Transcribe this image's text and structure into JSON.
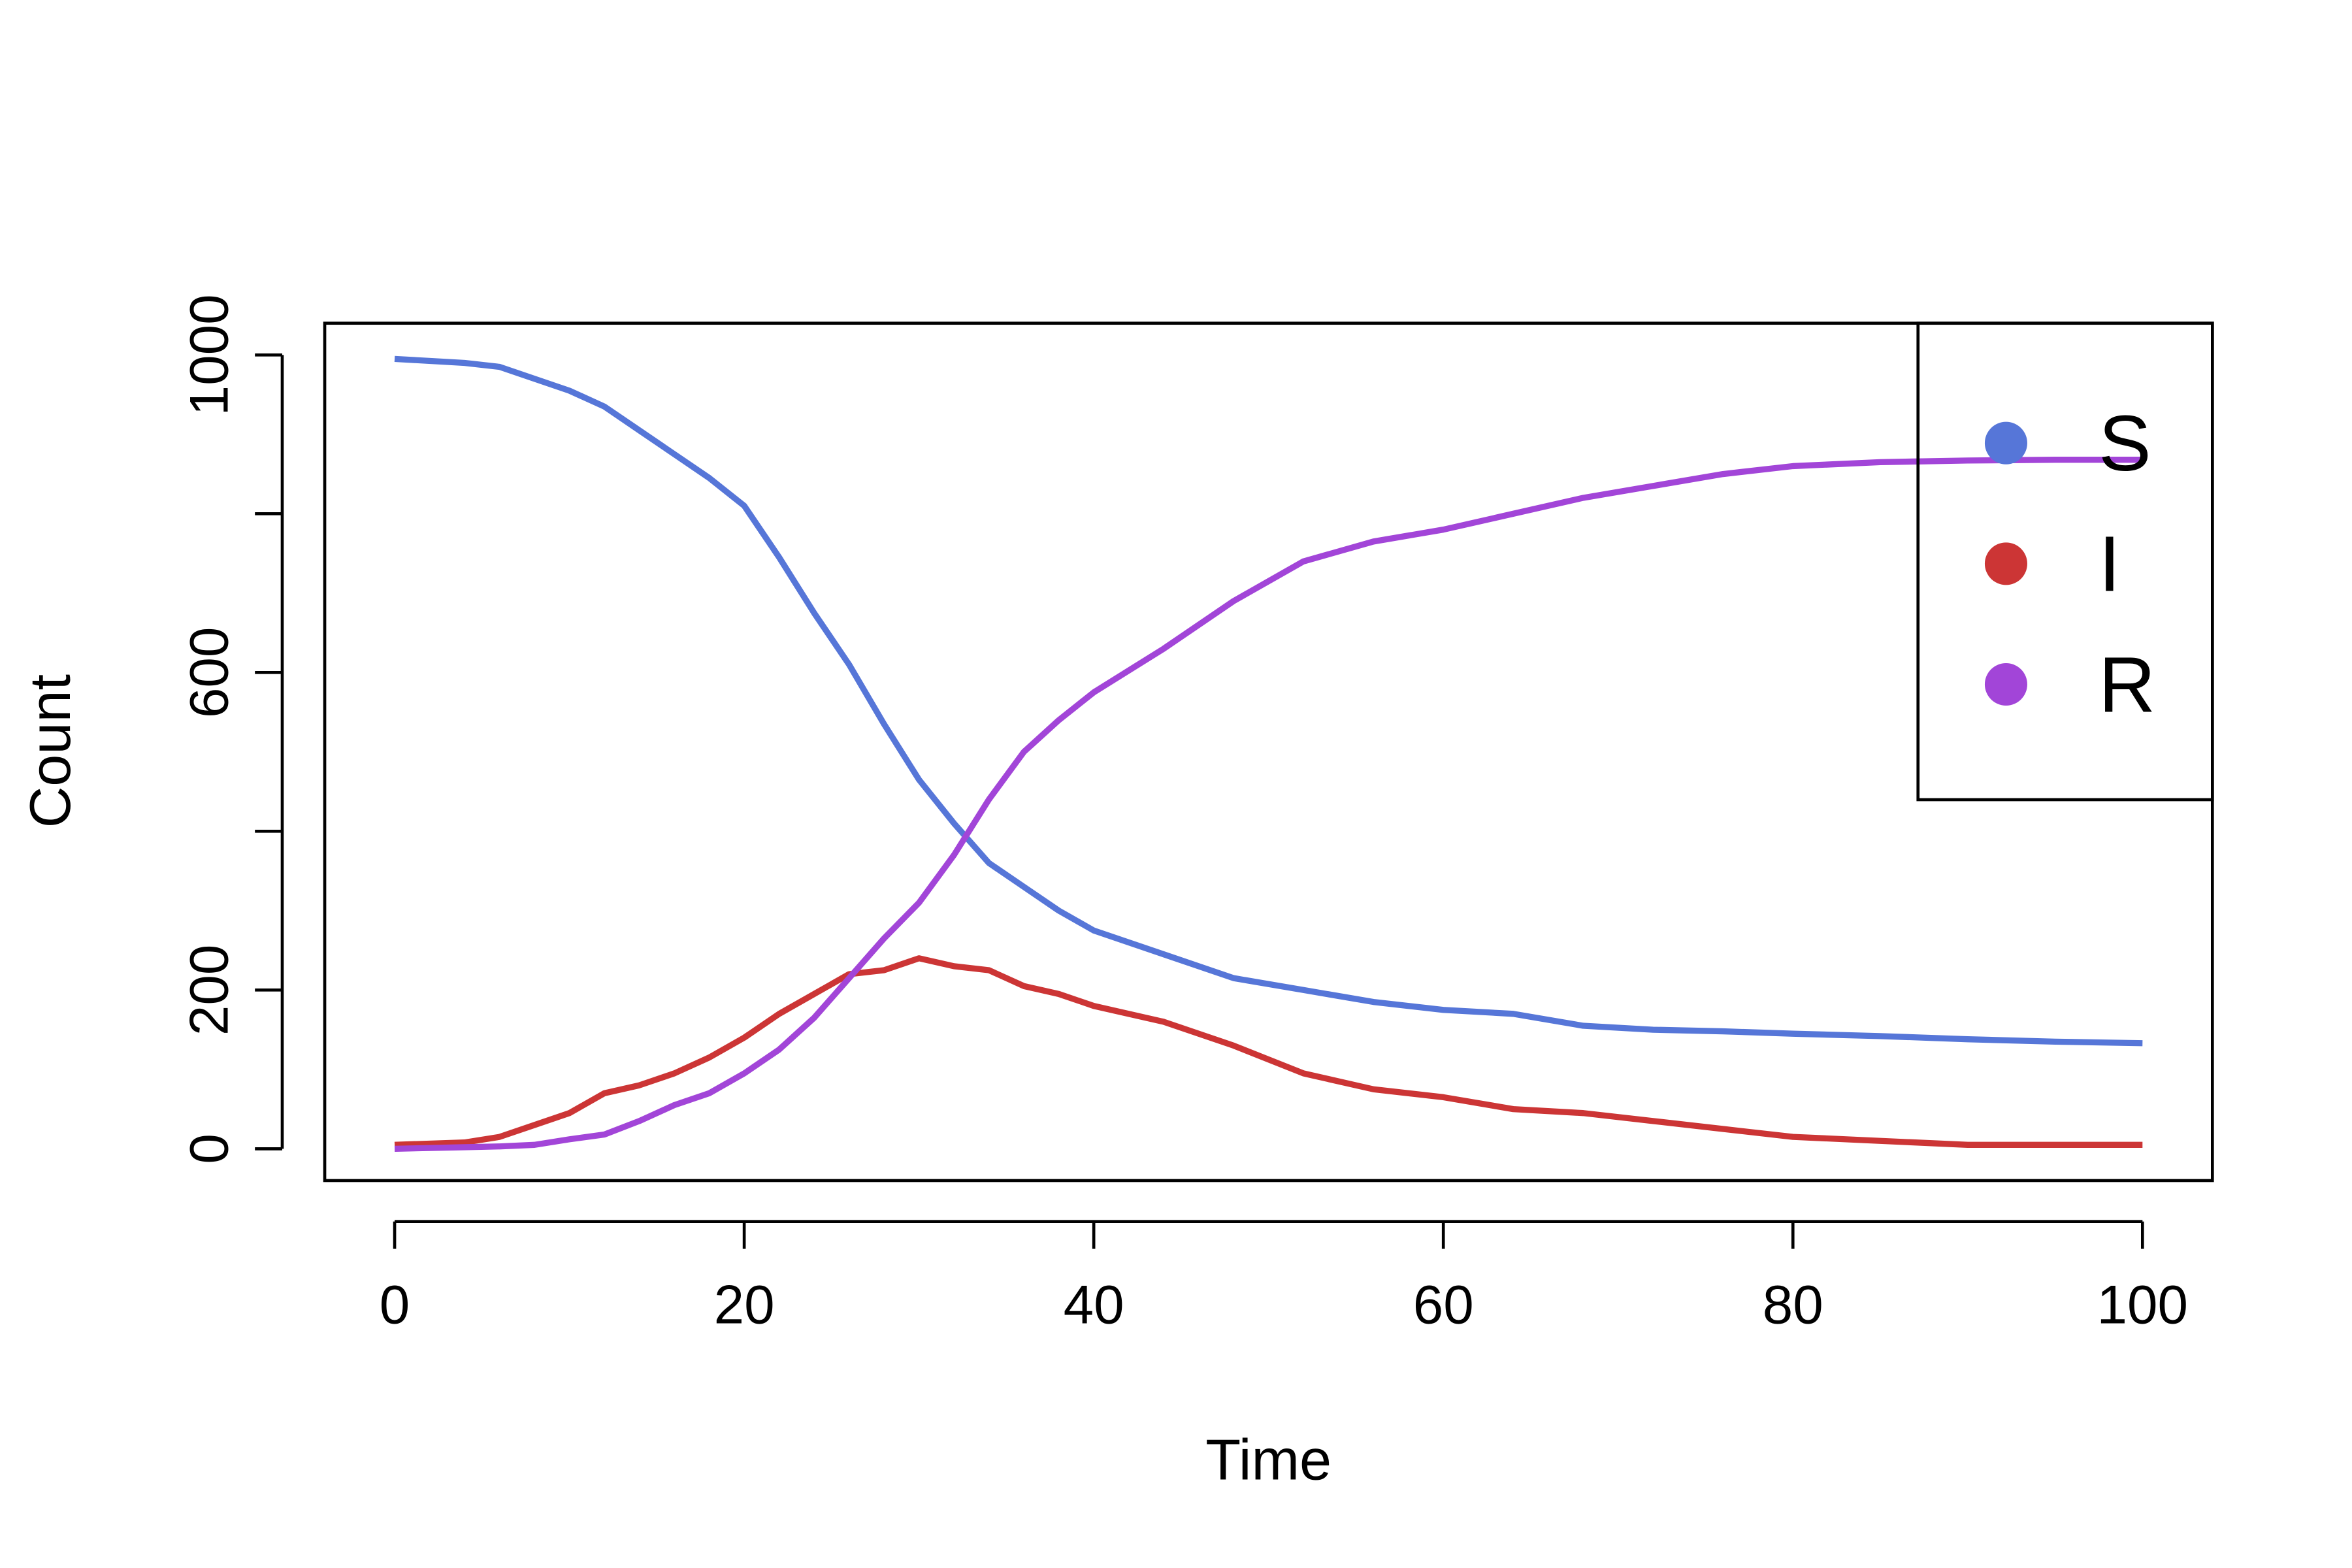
{
  "chart_data": {
    "type": "line",
    "x_label": "Time",
    "y_label": "Count",
    "xlim": [
      -4,
      104
    ],
    "ylim": [
      -40,
      1040
    ],
    "xticks": [
      0,
      20,
      40,
      60,
      80,
      100
    ],
    "yticks": [
      0,
      200,
      600,
      1000
    ],
    "yticks_unlabeled": [
      400,
      800
    ],
    "legend": "top-right",
    "x": [
      0,
      4,
      6,
      8,
      10,
      12,
      14,
      16,
      18,
      20,
      22,
      24,
      26,
      28,
      30,
      32,
      34,
      36,
      38,
      40,
      44,
      48,
      52,
      56,
      60,
      64,
      68,
      72,
      76,
      80,
      85,
      90,
      95,
      100
    ],
    "series": [
      {
        "name": "S",
        "color": "#5676d8",
        "values": [
          995,
          990,
          985,
          970,
          955,
          935,
          905,
          875,
          845,
          810,
          745,
          675,
          610,
          535,
          465,
          410,
          360,
          330,
          300,
          275,
          245,
          215,
          200,
          185,
          175,
          170,
          155,
          150,
          148,
          145,
          142,
          138,
          135,
          133
        ]
      },
      {
        "name": "I",
        "color": "#cc3535",
        "values": [
          5,
          8,
          15,
          30,
          45,
          70,
          80,
          95,
          115,
          140,
          170,
          195,
          220,
          225,
          240,
          230,
          225,
          205,
          195,
          180,
          160,
          130,
          95,
          75,
          65,
          50,
          45,
          35,
          25,
          15,
          10,
          5,
          5,
          5
        ]
      },
      {
        "name": "R",
        "color": "#a245d8",
        "values": [
          0,
          2,
          3,
          5,
          12,
          18,
          35,
          55,
          70,
          95,
          125,
          165,
          215,
          265,
          310,
          370,
          440,
          500,
          540,
          575,
          630,
          690,
          740,
          765,
          780,
          800,
          820,
          835,
          850,
          860,
          865,
          867,
          868,
          868
        ]
      }
    ]
  }
}
